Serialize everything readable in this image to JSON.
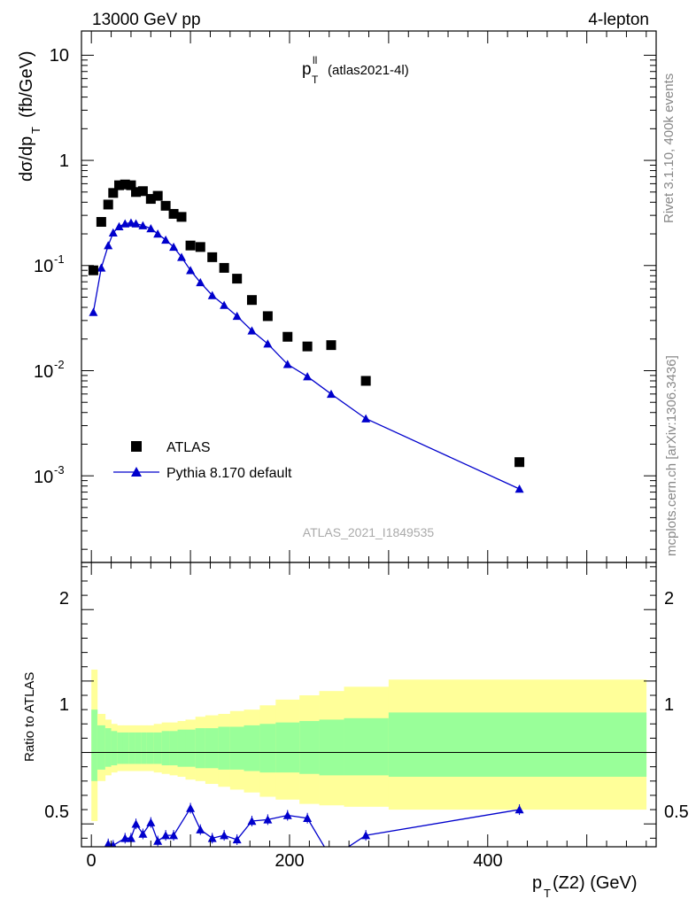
{
  "header": {
    "left": "13000 GeV pp",
    "right": "4-lepton",
    "plot_title_main": "p",
    "plot_title_sup": "ll",
    "plot_title_sub": "T",
    "plot_title_extra": "(atlas2021-4l)"
  },
  "side_labels": {
    "rivet": "Rivet 3.1.10,  400k events",
    "mcplots": "mcplots.cern.ch [arXiv:1306.3436]"
  },
  "watermark": "ATLAS_2021_I1849535",
  "axes": {
    "ylabel_main": "dσ/dp",
    "ylabel_main_sub": "T",
    "ylabel_main_unit": "(fb/GeV)",
    "ylabel_ratio": "Ratio to ATLAS",
    "xlabel_main": "p",
    "xlabel_sub": "T",
    "xlabel_rest": "(Z2) (GeV)",
    "x_ticks": [
      "0",
      "200",
      "400"
    ],
    "y_ticks_main": [
      {
        "base": "10",
        "exp": "-3"
      },
      {
        "base": "10",
        "exp": "-2"
      },
      {
        "base": "10",
        "exp": "-1"
      },
      {
        "base": "1",
        "exp": ""
      },
      {
        "base": "10",
        "exp": ""
      }
    ],
    "y_ticks_ratio": [
      "0.5",
      "1",
      "2"
    ]
  },
  "legend": {
    "data_label": "ATLAS",
    "mc_label": "Pythia 8.170 default"
  },
  "chart_data": {
    "type": "scatter",
    "x_range": [
      -10,
      570
    ],
    "main": {
      "y_scale": "log",
      "ylim": [
        0.00015,
        17
      ],
      "series": [
        {
          "name": "ATLAS",
          "marker": "square",
          "color": "#000000",
          "x": [
            2,
            10,
            17,
            22,
            28,
            34,
            40,
            45,
            52,
            60,
            67,
            75,
            83,
            91,
            100,
            110,
            122,
            134,
            147,
            162,
            178,
            198,
            218,
            242,
            277,
            432
          ],
          "y": [
            0.09,
            0.26,
            0.38,
            0.49,
            0.58,
            0.59,
            0.58,
            0.5,
            0.51,
            0.43,
            0.46,
            0.37,
            0.31,
            0.29,
            0.155,
            0.15,
            0.12,
            0.095,
            0.075,
            0.047,
            0.033,
            0.021,
            0.017,
            0.0175,
            0.008,
            0.00135
          ]
        },
        {
          "name": "Pythia 8.170 default",
          "marker": "triangle",
          "color": "#0000cc",
          "x": [
            2,
            10,
            17,
            22,
            28,
            34,
            40,
            45,
            52,
            60,
            67,
            75,
            83,
            91,
            100,
            110,
            122,
            134,
            147,
            162,
            178,
            198,
            218,
            242,
            277,
            432
          ],
          "y": [
            0.036,
            0.095,
            0.155,
            0.205,
            0.235,
            0.25,
            0.255,
            0.25,
            0.24,
            0.225,
            0.2,
            0.175,
            0.15,
            0.12,
            0.09,
            0.069,
            0.052,
            0.042,
            0.033,
            0.024,
            0.018,
            0.0115,
            0.0088,
            0.006,
            0.0035,
            0.00075
          ]
        }
      ]
    },
    "ratio": {
      "y_scale": "linear",
      "ylim": [
        0.34,
        2.33
      ],
      "reference": 1.0,
      "bands": {
        "edges": [
          0,
          6,
          14,
          20,
          26,
          32,
          38,
          44,
          50,
          56,
          63,
          71,
          79,
          87,
          95,
          105,
          115,
          128,
          140,
          154,
          170,
          186,
          210,
          230,
          255,
          300,
          560
        ],
        "inner_up": [
          1.3,
          1.19,
          1.17,
          1.15,
          1.14,
          1.14,
          1.14,
          1.14,
          1.14,
          1.14,
          1.14,
          1.15,
          1.15,
          1.16,
          1.16,
          1.17,
          1.17,
          1.18,
          1.18,
          1.19,
          1.2,
          1.21,
          1.22,
          1.23,
          1.24,
          1.28
        ],
        "inner_down": [
          0.8,
          0.88,
          0.9,
          0.91,
          0.92,
          0.92,
          0.92,
          0.92,
          0.92,
          0.92,
          0.92,
          0.91,
          0.91,
          0.9,
          0.9,
          0.89,
          0.89,
          0.88,
          0.88,
          0.87,
          0.86,
          0.86,
          0.85,
          0.84,
          0.84,
          0.83
        ],
        "outer_up": [
          1.58,
          1.27,
          1.23,
          1.2,
          1.19,
          1.19,
          1.19,
          1.19,
          1.19,
          1.19,
          1.2,
          1.21,
          1.21,
          1.22,
          1.23,
          1.25,
          1.26,
          1.27,
          1.29,
          1.3,
          1.33,
          1.37,
          1.4,
          1.43,
          1.46,
          1.51
        ],
        "outer_down": [
          0.52,
          0.8,
          0.84,
          0.86,
          0.87,
          0.87,
          0.87,
          0.87,
          0.87,
          0.87,
          0.86,
          0.85,
          0.84,
          0.83,
          0.81,
          0.8,
          0.78,
          0.76,
          0.74,
          0.72,
          0.69,
          0.67,
          0.64,
          0.63,
          0.62,
          0.6
        ],
        "inner_color": "#99ff99",
        "outer_color": "#ffff99"
      },
      "series": {
        "name": "Pythia 8.170 default",
        "color": "#0000cc",
        "x": [
          17,
          22,
          34,
          40,
          45,
          52,
          60,
          67,
          75,
          83,
          100,
          110,
          122,
          134,
          147,
          162,
          178,
          198,
          218,
          242,
          277,
          432
        ],
        "y": [
          0.36,
          0.35,
          0.4,
          0.4,
          0.5,
          0.43,
          0.51,
          0.38,
          0.42,
          0.42,
          0.61,
          0.46,
          0.4,
          0.42,
          0.39,
          0.52,
          0.53,
          0.56,
          0.54,
          0.26,
          0.42,
          0.6
        ]
      }
    }
  }
}
